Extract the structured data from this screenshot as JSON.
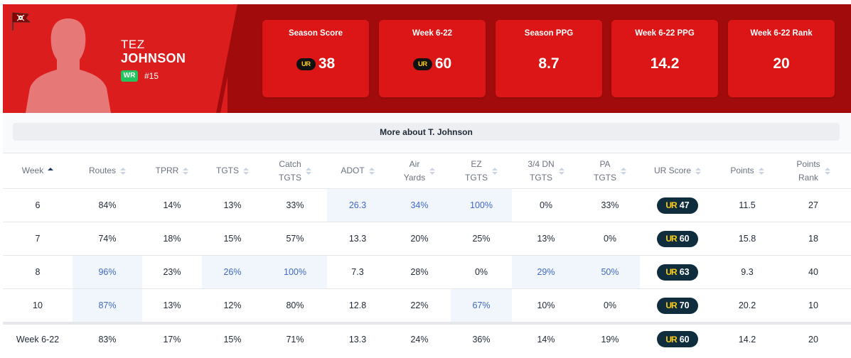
{
  "player": {
    "first_name": "TEZ",
    "last_name": "JOHNSON",
    "position": "WR",
    "jersey": "#15",
    "team_logo_icon": "buccaneers-flag-icon",
    "headshot_icon": "player-silhouette-icon"
  },
  "colors": {
    "header_dark": "#a10b0b",
    "header_light": "#dc1d1d",
    "card": "#dc1616",
    "position_badge": "#22c55e",
    "ur_pill": "#0f2d3d",
    "ur_logo": "#facc15",
    "highlight_bg": "#f1f6fd",
    "highlight_text": "#3f68c8"
  },
  "cards": [
    {
      "label": "Season Score",
      "value": "38",
      "has_ur_icon": true
    },
    {
      "label": "Week 6-22",
      "value": "60",
      "has_ur_icon": true
    },
    {
      "label": "Season PPG",
      "value": "8.7",
      "has_ur_icon": false
    },
    {
      "label": "Week 6-22 PPG",
      "value": "14.2",
      "has_ur_icon": false
    },
    {
      "label": "Week 6-22 Rank",
      "value": "20",
      "has_ur_icon": false
    }
  ],
  "ur_logo_text": "UR",
  "more_button": "More about T. Johnson",
  "table": {
    "columns": [
      {
        "key": "week",
        "label": "Week",
        "sort": "asc"
      },
      {
        "key": "routes",
        "label": "Routes"
      },
      {
        "key": "tprr",
        "label": "TPRR"
      },
      {
        "key": "tgts",
        "label": "TGTS"
      },
      {
        "key": "catch_tgts",
        "label": "Catch TGTS",
        "lines": [
          "Catch",
          "TGTS"
        ]
      },
      {
        "key": "adot",
        "label": "ADOT"
      },
      {
        "key": "air_yards",
        "label": "Air Yards",
        "lines": [
          "Air",
          "Yards"
        ]
      },
      {
        "key": "ez_tgts",
        "label": "EZ TGTS",
        "lines": [
          "EZ",
          "TGTS"
        ]
      },
      {
        "key": "dn_tgts",
        "label": "3/4 DN TGTS",
        "lines": [
          "3/4 DN",
          "TGTS"
        ]
      },
      {
        "key": "pa_tgts",
        "label": "PA TGTS",
        "lines": [
          "PA",
          "TGTS"
        ]
      },
      {
        "key": "ur_score",
        "label": "UR Score"
      },
      {
        "key": "points",
        "label": "Points"
      },
      {
        "key": "points_rank",
        "label": "Points Rank",
        "lines": [
          "Points",
          "Rank"
        ]
      }
    ],
    "rows": [
      {
        "week": "6",
        "routes": "84%",
        "tprr": "14%",
        "tgts": "13%",
        "catch_tgts": "33%",
        "adot": "26.3",
        "air_yards": "34%",
        "ez_tgts": "100%",
        "dn_tgts": "0%",
        "pa_tgts": "33%",
        "ur_score": "47",
        "points": "11.5",
        "points_rank": "27",
        "highlight": [
          "adot",
          "air_yards",
          "ez_tgts"
        ]
      },
      {
        "week": "7",
        "routes": "74%",
        "tprr": "18%",
        "tgts": "15%",
        "catch_tgts": "57%",
        "adot": "13.3",
        "air_yards": "20%",
        "ez_tgts": "25%",
        "dn_tgts": "13%",
        "pa_tgts": "0%",
        "ur_score": "60",
        "points": "15.8",
        "points_rank": "18",
        "highlight": []
      },
      {
        "week": "8",
        "routes": "96%",
        "tprr": "23%",
        "tgts": "26%",
        "catch_tgts": "100%",
        "adot": "7.3",
        "air_yards": "28%",
        "ez_tgts": "0%",
        "dn_tgts": "29%",
        "pa_tgts": "50%",
        "ur_score": "63",
        "points": "9.3",
        "points_rank": "40",
        "highlight": [
          "routes",
          "tgts",
          "catch_tgts",
          "dn_tgts",
          "pa_tgts"
        ]
      },
      {
        "week": "10",
        "routes": "87%",
        "tprr": "13%",
        "tgts": "12%",
        "catch_tgts": "80%",
        "adot": "12.8",
        "air_yards": "22%",
        "ez_tgts": "67%",
        "dn_tgts": "10%",
        "pa_tgts": "0%",
        "ur_score": "70",
        "points": "20.2",
        "points_rank": "10",
        "highlight": [
          "routes",
          "ez_tgts"
        ]
      }
    ],
    "total": {
      "week": "Week 6-22",
      "routes": "83%",
      "tprr": "17%",
      "tgts": "15%",
      "catch_tgts": "71%",
      "adot": "13.3",
      "air_yards": "24%",
      "ez_tgts": "36%",
      "dn_tgts": "14%",
      "pa_tgts": "19%",
      "ur_score": "60",
      "points": "14.2",
      "points_rank": "20",
      "highlight": []
    }
  }
}
